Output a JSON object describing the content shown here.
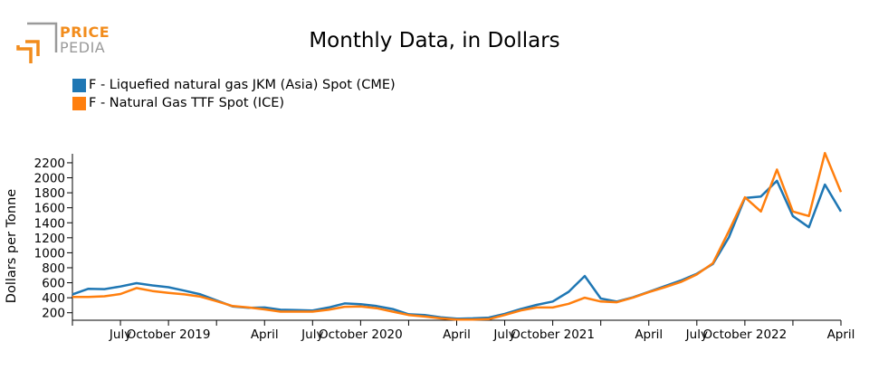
{
  "logo": {
    "brand_top": "PRICE",
    "brand_bottom": "PEDIA",
    "colors": {
      "orange": "#f28c1c",
      "gray": "#9a9a9a"
    }
  },
  "chart_data": {
    "type": "line",
    "title": "Monthly Data, in Dollars",
    "xlabel": "",
    "ylabel": "Dollars per Tonne",
    "ylim": [
      100,
      2320
    ],
    "yticks": [
      200,
      400,
      600,
      800,
      1000,
      1200,
      1400,
      1600,
      1800,
      2000,
      2200
    ],
    "x_start": "2019-04",
    "x_end": "2023-04",
    "xtick_labels": [
      {
        "month": "2019-07",
        "label": "July"
      },
      {
        "month": "2019-10",
        "label": "October 2019"
      },
      {
        "month": "2020-04",
        "label": "April"
      },
      {
        "month": "2020-07",
        "label": "July"
      },
      {
        "month": "2020-10",
        "label": "October 2020"
      },
      {
        "month": "2021-04",
        "label": "April"
      },
      {
        "month": "2021-07",
        "label": "July"
      },
      {
        "month": "2021-10",
        "label": "October 2021"
      },
      {
        "month": "2022-04",
        "label": "April"
      },
      {
        "month": "2022-07",
        "label": "July"
      },
      {
        "month": "2022-10",
        "label": "October 2022"
      },
      {
        "month": "2023-04",
        "label": "April"
      }
    ],
    "legend_position": "top-left",
    "grid": false,
    "months": [
      "2019-04",
      "2019-05",
      "2019-06",
      "2019-07",
      "2019-08",
      "2019-09",
      "2019-10",
      "2019-11",
      "2019-12",
      "2020-01",
      "2020-02",
      "2020-03",
      "2020-04",
      "2020-05",
      "2020-06",
      "2020-07",
      "2020-08",
      "2020-09",
      "2020-10",
      "2020-11",
      "2020-12",
      "2021-01",
      "2021-02",
      "2021-03",
      "2021-04",
      "2021-05",
      "2021-06",
      "2021-07",
      "2021-08",
      "2021-09",
      "2021-10",
      "2021-11",
      "2021-12",
      "2022-01",
      "2022-02",
      "2022-03",
      "2022-04",
      "2022-05",
      "2022-06",
      "2022-07",
      "2022-08",
      "2022-09",
      "2022-10",
      "2022-11",
      "2022-12",
      "2023-01",
      "2023-02",
      "2023-03",
      "2023-04"
    ],
    "series": [
      {
        "name": "F - Liquefied natural gas JKM (Asia) Spot (CME)",
        "color": "#1f77b4",
        "values": [
          445,
          520,
          515,
          550,
          595,
          565,
          540,
          495,
          445,
          365,
          285,
          265,
          270,
          240,
          235,
          230,
          270,
          325,
          315,
          290,
          250,
          180,
          170,
          140,
          120,
          125,
          135,
          185,
          250,
          305,
          350,
          480,
          690,
          390,
          350,
          405,
          480,
          555,
          630,
          720,
          850,
          1205,
          1730,
          1750,
          1960,
          1490,
          1340,
          1910,
          1550
        ]
      },
      {
        "name": "F - Natural Gas TTF Spot (ICE)",
        "color": "#ff7f0e",
        "values": [
          410,
          410,
          420,
          450,
          530,
          490,
          465,
          445,
          415,
          355,
          290,
          270,
          245,
          215,
          215,
          215,
          240,
          280,
          285,
          260,
          215,
          170,
          150,
          125,
          110,
          110,
          115,
          170,
          230,
          270,
          270,
          320,
          400,
          350,
          340,
          400,
          475,
          540,
          610,
          710,
          860,
          1290,
          1740,
          1550,
          2110,
          1550,
          1490,
          2330,
          1810
        ]
      }
    ]
  }
}
